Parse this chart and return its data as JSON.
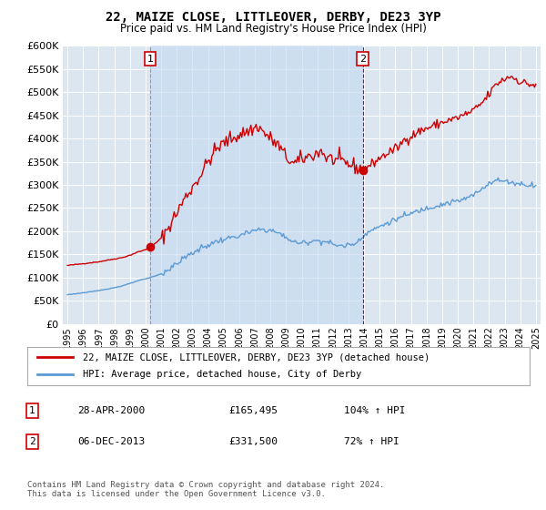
{
  "title": "22, MAIZE CLOSE, LITTLEOVER, DERBY, DE23 3YP",
  "subtitle": "Price paid vs. HM Land Registry's House Price Index (HPI)",
  "legend_line1": "22, MAIZE CLOSE, LITTLEOVER, DERBY, DE23 3YP (detached house)",
  "legend_line2": "HPI: Average price, detached house, City of Derby",
  "footnote": "Contains HM Land Registry data © Crown copyright and database right 2024.\nThis data is licensed under the Open Government Licence v3.0.",
  "sale1_date": "28-APR-2000",
  "sale1_price": "£165,495",
  "sale1_hpi": "104% ↑ HPI",
  "sale2_date": "06-DEC-2013",
  "sale2_price": "£331,500",
  "sale2_hpi": "72% ↑ HPI",
  "red_color": "#cc0000",
  "blue_color": "#5b9bd5",
  "bg_color": "#dce6f1",
  "shade_color": "#c5d9f1",
  "ylim": [
    0,
    600000
  ],
  "yticks": [
    0,
    50000,
    100000,
    150000,
    200000,
    250000,
    300000,
    350000,
    400000,
    450000,
    500000,
    550000,
    600000
  ],
  "sale1_x": 2000.3,
  "sale1_y": 165495,
  "sale2_x": 2013.92,
  "sale2_y": 331500,
  "xmin": 1994.7,
  "xmax": 2025.3
}
